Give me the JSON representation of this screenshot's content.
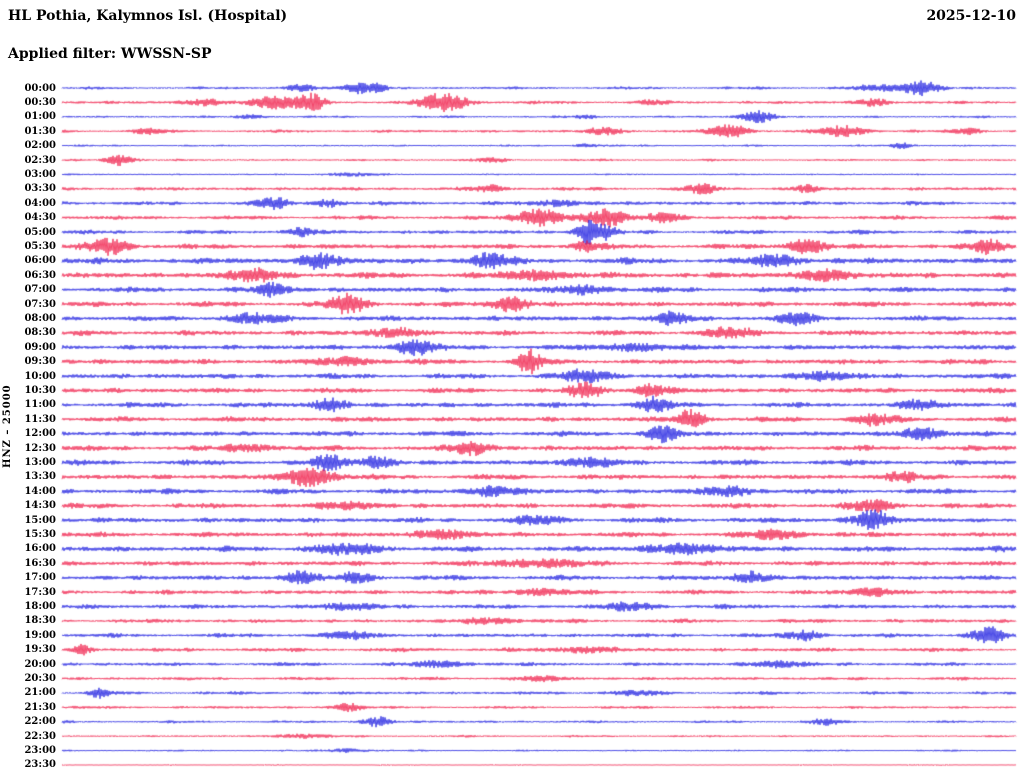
{
  "header": {
    "title": "HL Pothia, Kalymnos Isl. (Hospital)",
    "date": "2025-12-10",
    "filter_line": "Applied filter: WWSSN-SP"
  },
  "chart_data": {
    "type": "line",
    "subtype": "seismogram-helicorder",
    "title": "HL Pothia, Kalymnos Isl. (Hospital)",
    "date": "2025-12-10",
    "filter": "Applied filter: WWSSN-SP",
    "ylabel": "HNZ – 25000",
    "x_axis": "each row = 30 minutes, rows from 00:00 to 23:30",
    "palette": {
      "blue": "#0000dd",
      "red": "#ee0033"
    },
    "rows": [
      {
        "label": "00:00",
        "color": "blue",
        "base": 1.4,
        "bursts": [
          [
            0.25,
            3,
            0.012
          ],
          [
            0.31,
            5,
            0.01
          ],
          [
            0.33,
            4,
            0.008
          ],
          [
            0.86,
            3,
            0.02
          ],
          [
            0.9,
            7,
            0.014
          ]
        ]
      },
      {
        "label": "00:30",
        "color": "red",
        "base": 1.6,
        "bursts": [
          [
            0.15,
            3,
            0.015
          ],
          [
            0.22,
            6,
            0.018
          ],
          [
            0.26,
            9,
            0.01
          ],
          [
            0.4,
            9,
            0.018
          ],
          [
            0.62,
            2,
            0.01
          ],
          [
            0.85,
            4,
            0.01
          ]
        ]
      },
      {
        "label": "01:00",
        "color": "blue",
        "base": 1.2,
        "bursts": [
          [
            0.2,
            2,
            0.01
          ],
          [
            0.55,
            2,
            0.008
          ],
          [
            0.73,
            6,
            0.012
          ]
        ]
      },
      {
        "label": "01:30",
        "color": "red",
        "base": 1.5,
        "bursts": [
          [
            0.09,
            3,
            0.01
          ],
          [
            0.57,
            4,
            0.012
          ],
          [
            0.7,
            7,
            0.014
          ],
          [
            0.82,
            5,
            0.018
          ],
          [
            0.95,
            3,
            0.01
          ]
        ]
      },
      {
        "label": "02:00",
        "color": "blue",
        "base": 1.0,
        "bursts": [
          [
            0.55,
            2,
            0.01
          ],
          [
            0.88,
            3,
            0.008
          ]
        ]
      },
      {
        "label": "02:30",
        "color": "red",
        "base": 1.2,
        "bursts": [
          [
            0.06,
            6,
            0.01
          ],
          [
            0.45,
            2,
            0.012
          ]
        ]
      },
      {
        "label": "03:00",
        "color": "blue",
        "base": 0.9,
        "bursts": [
          [
            0.3,
            1.5,
            0.02
          ]
        ]
      },
      {
        "label": "03:30",
        "color": "red",
        "base": 1.8,
        "bursts": [
          [
            0.45,
            3,
            0.012
          ],
          [
            0.67,
            4,
            0.012
          ],
          [
            0.78,
            3,
            0.01
          ]
        ]
      },
      {
        "label": "04:00",
        "color": "blue",
        "base": 2.0,
        "bursts": [
          [
            0.22,
            5,
            0.012
          ],
          [
            0.28,
            4,
            0.01
          ],
          [
            0.52,
            3,
            0.015
          ]
        ]
      },
      {
        "label": "04:30",
        "color": "red",
        "base": 2.0,
        "bursts": [
          [
            0.5,
            8,
            0.018
          ],
          [
            0.57,
            9,
            0.014
          ],
          [
            0.63,
            5,
            0.012
          ]
        ]
      },
      {
        "label": "05:00",
        "color": "blue",
        "base": 2.0,
        "bursts": [
          [
            0.25,
            4,
            0.012
          ],
          [
            0.55,
            12,
            0.008
          ],
          [
            0.57,
            7,
            0.008
          ]
        ]
      },
      {
        "label": "05:30",
        "color": "red",
        "base": 2.5,
        "bursts": [
          [
            0.05,
            8,
            0.014
          ],
          [
            0.55,
            5,
            0.01
          ],
          [
            0.78,
            7,
            0.014
          ],
          [
            0.97,
            7,
            0.012
          ]
        ]
      },
      {
        "label": "06:00",
        "color": "blue",
        "base": 3.0,
        "bursts": [
          [
            0.27,
            7,
            0.014
          ],
          [
            0.45,
            7,
            0.014
          ],
          [
            0.75,
            5,
            0.018
          ]
        ]
      },
      {
        "label": "06:30",
        "color": "red",
        "base": 3.0,
        "bursts": [
          [
            0.2,
            5,
            0.02
          ],
          [
            0.5,
            5,
            0.02
          ],
          [
            0.8,
            5,
            0.02
          ]
        ]
      },
      {
        "label": "07:00",
        "color": "blue",
        "base": 2.6,
        "bursts": [
          [
            0.22,
            6,
            0.012
          ],
          [
            0.55,
            4,
            0.02
          ]
        ]
      },
      {
        "label": "07:30",
        "color": "red",
        "base": 2.6,
        "bursts": [
          [
            0.3,
            9,
            0.014
          ],
          [
            0.47,
            7,
            0.014
          ]
        ]
      },
      {
        "label": "08:00",
        "color": "blue",
        "base": 2.6,
        "bursts": [
          [
            0.2,
            4,
            0.02
          ],
          [
            0.64,
            7,
            0.012
          ],
          [
            0.77,
            6,
            0.012
          ]
        ]
      },
      {
        "label": "08:30",
        "color": "red",
        "base": 2.6,
        "bursts": [
          [
            0.35,
            4,
            0.02
          ],
          [
            0.7,
            4,
            0.02
          ]
        ]
      },
      {
        "label": "09:00",
        "color": "blue",
        "base": 2.6,
        "bursts": [
          [
            0.37,
            8,
            0.014
          ],
          [
            0.6,
            4,
            0.02
          ]
        ]
      },
      {
        "label": "09:30",
        "color": "red",
        "base": 2.6,
        "bursts": [
          [
            0.3,
            4,
            0.02
          ],
          [
            0.49,
            11,
            0.009
          ]
        ]
      },
      {
        "label": "10:00",
        "color": "blue",
        "base": 2.6,
        "bursts": [
          [
            0.55,
            5,
            0.02
          ],
          [
            0.8,
            4,
            0.02
          ]
        ]
      },
      {
        "label": "10:30",
        "color": "red",
        "base": 2.6,
        "bursts": [
          [
            0.55,
            7,
            0.012
          ],
          [
            0.62,
            6,
            0.012
          ]
        ]
      },
      {
        "label": "11:00",
        "color": "blue",
        "base": 2.6,
        "bursts": [
          [
            0.28,
            6,
            0.012
          ],
          [
            0.62,
            7,
            0.012
          ],
          [
            0.9,
            4,
            0.015
          ]
        ]
      },
      {
        "label": "11:30",
        "color": "red",
        "base": 2.6,
        "bursts": [
          [
            0.66,
            10,
            0.01
          ],
          [
            0.85,
            5,
            0.015
          ]
        ]
      },
      {
        "label": "12:00",
        "color": "blue",
        "base": 2.6,
        "bursts": [
          [
            0.63,
            8,
            0.012
          ],
          [
            0.9,
            6,
            0.014
          ]
        ]
      },
      {
        "label": "12:30",
        "color": "red",
        "base": 2.6,
        "bursts": [
          [
            0.2,
            3,
            0.02
          ],
          [
            0.43,
            6,
            0.015
          ]
        ]
      },
      {
        "label": "13:00",
        "color": "blue",
        "base": 2.6,
        "bursts": [
          [
            0.28,
            7,
            0.012
          ],
          [
            0.33,
            6,
            0.012
          ],
          [
            0.55,
            4,
            0.02
          ]
        ]
      },
      {
        "label": "13:30",
        "color": "red",
        "base": 2.6,
        "bursts": [
          [
            0.26,
            9,
            0.018
          ],
          [
            0.88,
            4,
            0.015
          ]
        ]
      },
      {
        "label": "14:00",
        "color": "blue",
        "base": 2.6,
        "bursts": [
          [
            0.45,
            4,
            0.02
          ],
          [
            0.7,
            4,
            0.02
          ]
        ]
      },
      {
        "label": "14:30",
        "color": "red",
        "base": 2.6,
        "bursts": [
          [
            0.3,
            3,
            0.02
          ],
          [
            0.85,
            5,
            0.015
          ]
        ]
      },
      {
        "label": "15:00",
        "color": "blue",
        "base": 2.6,
        "bursts": [
          [
            0.5,
            3,
            0.02
          ],
          [
            0.85,
            9,
            0.014
          ]
        ]
      },
      {
        "label": "15:30",
        "color": "red",
        "base": 2.5,
        "bursts": [
          [
            0.4,
            4,
            0.02
          ],
          [
            0.75,
            4,
            0.02
          ]
        ]
      },
      {
        "label": "16:00",
        "color": "blue",
        "base": 2.8,
        "bursts": [
          [
            0.3,
            4,
            0.03
          ],
          [
            0.65,
            4,
            0.03
          ]
        ]
      },
      {
        "label": "16:30",
        "color": "red",
        "base": 2.5,
        "bursts": [
          [
            0.5,
            4,
            0.03
          ]
        ]
      },
      {
        "label": "17:00",
        "color": "blue",
        "base": 2.5,
        "bursts": [
          [
            0.25,
            6,
            0.012
          ],
          [
            0.31,
            5,
            0.012
          ],
          [
            0.72,
            6,
            0.012
          ]
        ]
      },
      {
        "label": "17:30",
        "color": "red",
        "base": 2.2,
        "bursts": [
          [
            0.5,
            3,
            0.02
          ],
          [
            0.85,
            4,
            0.015
          ]
        ]
      },
      {
        "label": "18:00",
        "color": "blue",
        "base": 2.2,
        "bursts": [
          [
            0.3,
            3,
            0.02
          ],
          [
            0.6,
            3,
            0.02
          ]
        ]
      },
      {
        "label": "18:30",
        "color": "red",
        "base": 2.0,
        "bursts": [
          [
            0.45,
            3,
            0.02
          ]
        ]
      },
      {
        "label": "19:00",
        "color": "blue",
        "base": 2.0,
        "bursts": [
          [
            0.3,
            3,
            0.02
          ],
          [
            0.78,
            5,
            0.012
          ],
          [
            0.97,
            8,
            0.012
          ]
        ]
      },
      {
        "label": "19:30",
        "color": "red",
        "base": 2.0,
        "bursts": [
          [
            0.02,
            4,
            0.008
          ],
          [
            0.55,
            3,
            0.02
          ]
        ]
      },
      {
        "label": "20:00",
        "color": "blue",
        "base": 1.8,
        "bursts": [
          [
            0.4,
            3,
            0.02
          ],
          [
            0.75,
            3,
            0.02
          ]
        ]
      },
      {
        "label": "20:30",
        "color": "red",
        "base": 1.6,
        "bursts": [
          [
            0.5,
            2,
            0.02
          ]
        ]
      },
      {
        "label": "21:00",
        "color": "blue",
        "base": 1.6,
        "bursts": [
          [
            0.04,
            4,
            0.008
          ],
          [
            0.6,
            2,
            0.02
          ]
        ]
      },
      {
        "label": "21:30",
        "color": "red",
        "base": 1.4,
        "bursts": [
          [
            0.3,
            4,
            0.01
          ]
        ]
      },
      {
        "label": "22:00",
        "color": "blue",
        "base": 1.3,
        "bursts": [
          [
            0.33,
            5,
            0.01
          ],
          [
            0.8,
            3,
            0.01
          ]
        ]
      },
      {
        "label": "22:30",
        "color": "red",
        "base": 1.1,
        "bursts": [
          [
            0.25,
            2,
            0.02
          ]
        ]
      },
      {
        "label": "23:00",
        "color": "blue",
        "base": 0.9,
        "bursts": [
          [
            0.3,
            2,
            0.015
          ]
        ]
      },
      {
        "label": "23:30",
        "color": "red",
        "base": 0.6,
        "bursts": []
      }
    ]
  }
}
